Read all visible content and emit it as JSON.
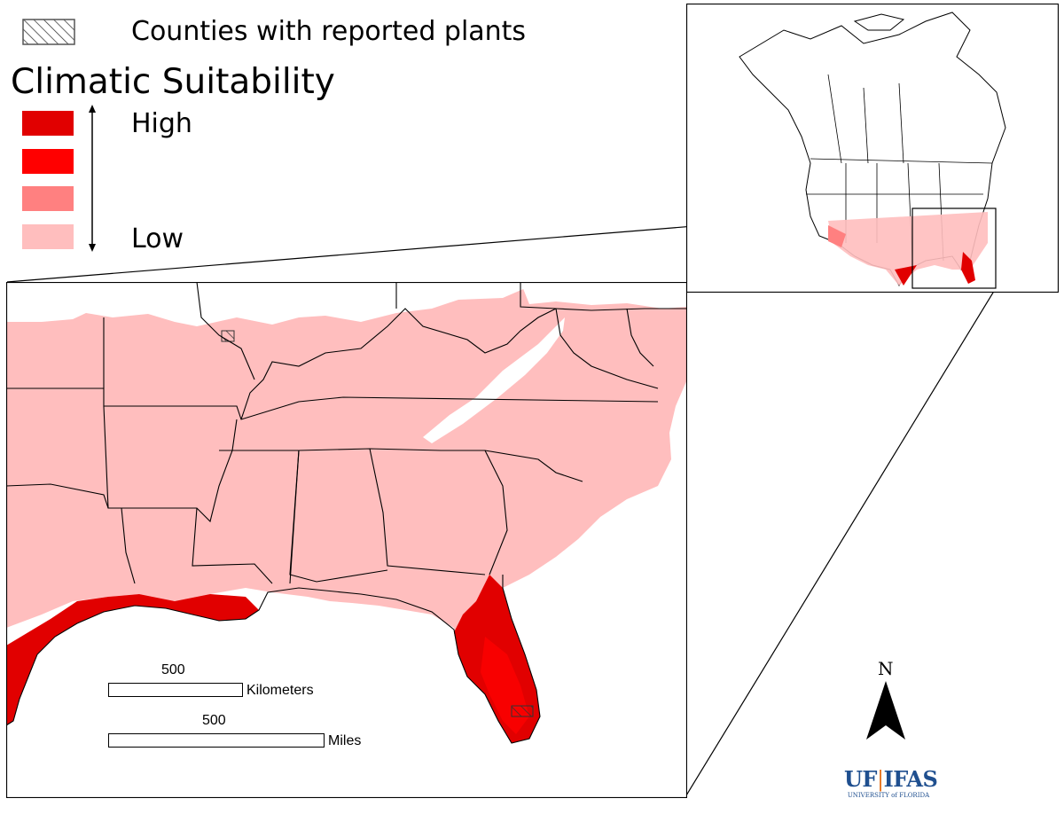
{
  "legend": {
    "reported_label": "Counties with reported plants",
    "title": "Climatic Suitability",
    "high_label": "High",
    "low_label": "Low",
    "classes": [
      {
        "level": "very-high",
        "color": "#e10000"
      },
      {
        "level": "high",
        "color": "#ff0000"
      },
      {
        "level": "medium",
        "color": "#ff8080"
      },
      {
        "level": "low",
        "color": "#ffbebe"
      }
    ]
  },
  "scalebar": {
    "km_value": "500",
    "km_unit": "Kilometers",
    "mi_value": "500",
    "mi_unit": "Miles"
  },
  "north_arrow": {
    "label": "N"
  },
  "logo": {
    "text_left": "UF",
    "text_right": "IFAS",
    "subtitle": "UNIVERSITY of FLORIDA"
  },
  "colors": {
    "low": "#ffbebe",
    "high": "#ff0000",
    "very_high": "#e10000",
    "outline": "#000000",
    "water": "#ffffff",
    "logo_blue": "#1f4f8f"
  }
}
